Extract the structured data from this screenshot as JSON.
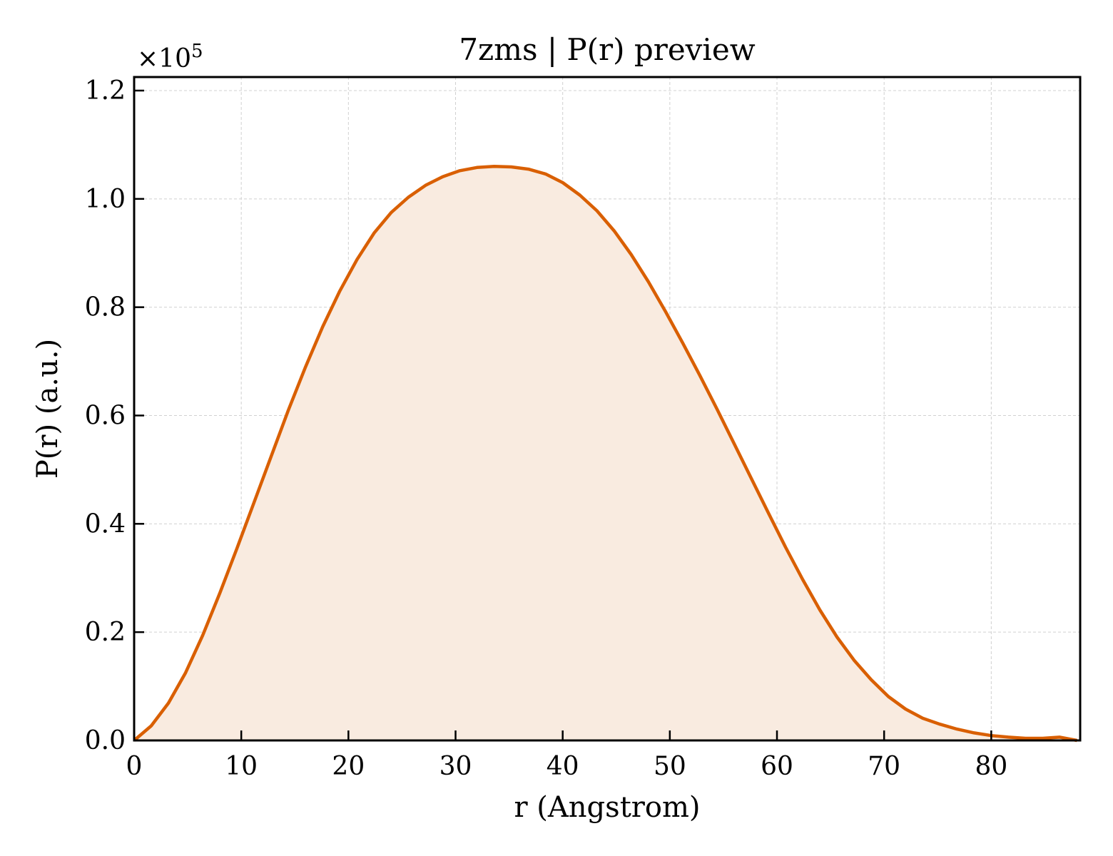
{
  "chart_data": {
    "type": "area",
    "title": "7zms | P(r) preview",
    "xlabel": "r (Angstrom)",
    "ylabel": "P(r) (a.u.)",
    "y_multiplier": {
      "base": "×10",
      "exponent": "5"
    },
    "xlim": [
      0,
      88.3
    ],
    "ylim": [
      0,
      1.225
    ],
    "x_ticks": [
      0,
      10,
      20,
      30,
      40,
      50,
      60,
      70,
      80
    ],
    "x_tick_labels": [
      "0",
      "10",
      "20",
      "30",
      "40",
      "50",
      "60",
      "70",
      "80"
    ],
    "y_ticks": [
      0.0,
      0.2,
      0.4,
      0.6,
      0.8,
      1.0,
      1.2
    ],
    "y_tick_labels": [
      "0.0",
      "0.2",
      "0.4",
      "0.6",
      "0.8",
      "1.0",
      "1.2"
    ],
    "grid": true,
    "tick_direction": "in",
    "line_color": "#d95f02",
    "fill_color": "#f9ebe0",
    "series": [
      {
        "x": [
          0,
          1.6,
          3.2,
          4.8,
          6.4,
          8.0,
          9.6,
          11.2,
          12.8,
          14.4,
          16.0,
          17.6,
          19.2,
          20.8,
          22.4,
          24.0,
          25.6,
          27.2,
          28.8,
          30.4,
          32.0,
          33.6,
          35.2,
          36.8,
          38.4,
          40.0,
          41.6,
          43.2,
          44.8,
          46.4,
          48.0,
          49.6,
          51.2,
          52.8,
          54.4,
          56.0,
          57.6,
          59.2,
          60.8,
          62.4,
          64.0,
          65.6,
          67.2,
          68.8,
          70.4,
          72.0,
          73.6,
          75.2,
          76.8,
          78.4,
          80.0,
          81.6,
          83.2,
          84.8,
          86.4,
          88.0
        ],
        "values": [
          0.0,
          0.027,
          0.069,
          0.125,
          0.194,
          0.272,
          0.355,
          0.44,
          0.525,
          0.61,
          0.69,
          0.764,
          0.83,
          0.888,
          0.937,
          0.975,
          1.003,
          1.025,
          1.041,
          1.052,
          1.058,
          1.06,
          1.059,
          1.055,
          1.046,
          1.03,
          1.007,
          0.978,
          0.941,
          0.897,
          0.847,
          0.792,
          0.734,
          0.674,
          0.612,
          0.548,
          0.484,
          0.42,
          0.357,
          0.297,
          0.241,
          0.191,
          0.148,
          0.112,
          0.081,
          0.058,
          0.041,
          0.03,
          0.021,
          0.014,
          0.009,
          0.006,
          0.004,
          0.004,
          0.006,
          0.0
        ]
      }
    ]
  }
}
